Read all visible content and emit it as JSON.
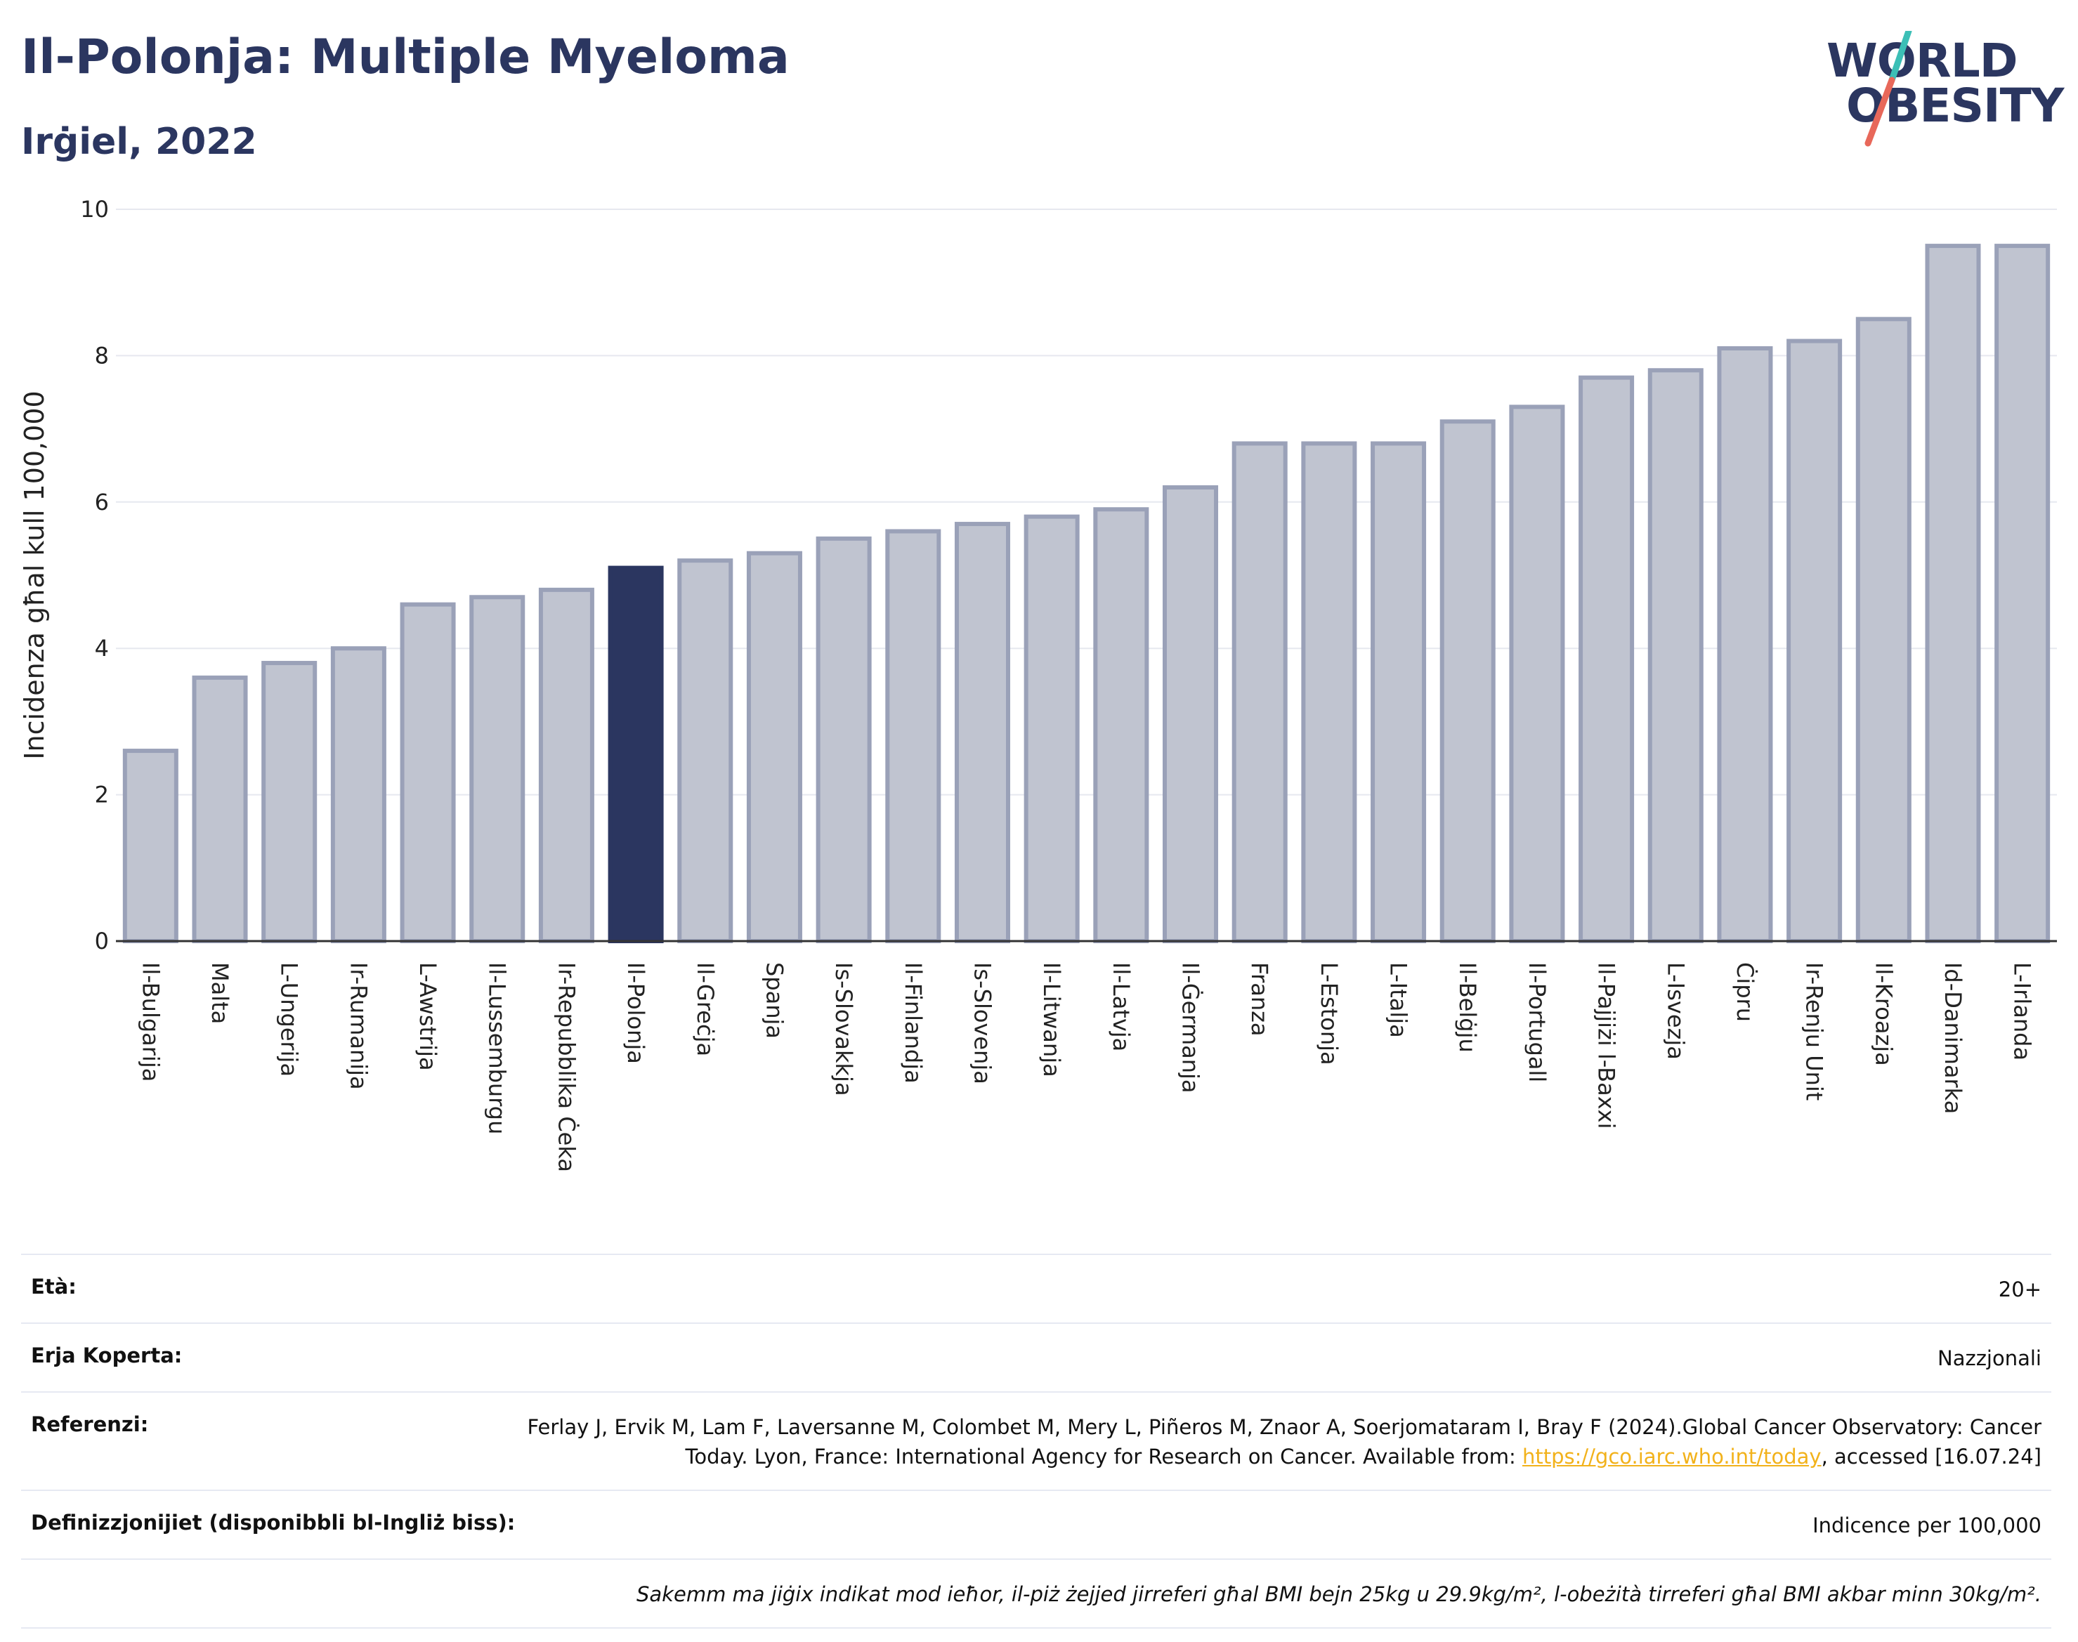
{
  "header": {
    "title": "Il-Polonja: Multiple Myeloma",
    "subtitle": "Irġiel, 2022"
  },
  "logo": {
    "line1": "WORLD",
    "line2": "OBESITY",
    "text_color": "#2b3660",
    "slash_colors": [
      "#e8685a",
      "#3cbfb6"
    ]
  },
  "chart_data": {
    "type": "bar",
    "ylabel": "Incidenza għal kull 100,000",
    "ylim": [
      0,
      10
    ],
    "yticks": [
      0,
      2,
      4,
      6,
      8,
      10
    ],
    "grid": true,
    "categories": [
      "Il-Bulgarija",
      "Malta",
      "L-Ungerija",
      "Ir-Rumanija",
      "L-Awstrija",
      "Il-Lussemburgu",
      "Ir-Repubblika Ċeka",
      "Il-Polonja",
      "Il-Greċja",
      "Spanja",
      "Is-Slovakkja",
      "Il-Finlandja",
      "Is-Slovenja",
      "Il-Litwanja",
      "Il-Latvja",
      "Il-Ġermanja",
      "Franza",
      "L-Estonja",
      "L-Italja",
      "Il-Belġju",
      "Il-Portugall",
      "Il-Pajjiżi l-Baxxi",
      "L-Isvezja",
      "Ċipru",
      "Ir-Renju Unit",
      "Il-Kroazja",
      "Id-Danimarka",
      "L-Irlanda"
    ],
    "values": [
      2.6,
      3.6,
      3.8,
      4.0,
      4.6,
      4.7,
      4.8,
      5.1,
      5.2,
      5.3,
      5.5,
      5.6,
      5.7,
      5.8,
      5.9,
      6.2,
      6.8,
      6.8,
      6.8,
      7.1,
      7.3,
      7.7,
      7.8,
      8.1,
      8.2,
      8.5,
      9.5,
      9.5
    ],
    "highlight": "Il-Polonja",
    "colors": {
      "bar": "#c0c4d0",
      "bar_edge": "#9aa1b8",
      "highlight": "#2b3660"
    }
  },
  "details": [
    {
      "key": "Età:",
      "value": "20+"
    },
    {
      "key": "Erja Koperta:",
      "value": "Nazzjonali"
    },
    {
      "key": "Referenzi:",
      "value_pre": "Ferlay J, Ervik M, Lam F, Laversanne M, Colombet M, Mery L, Piñeros M, Znaor A, Soerjomataram I, Bray F (2024).Global Cancer Observatory: Cancer Today. Lyon, France: International Agency for Research on Cancer. Available from: ",
      "link": "https://gco.iarc.who.int/today",
      "value_post": ", accessed [16.07.24]"
    },
    {
      "key": "Definizzjonijiet (disponibbli bl-Ingliż biss):",
      "value": "Indicence per 100,000"
    }
  ],
  "note": "Sakemm ma jiġix indikat mod ieħor, il-piż żejjed jirreferi għal BMI bejn 25kg u 29.9kg/m², l-obeżità tirreferi għal BMI akbar minn 30kg/m²."
}
